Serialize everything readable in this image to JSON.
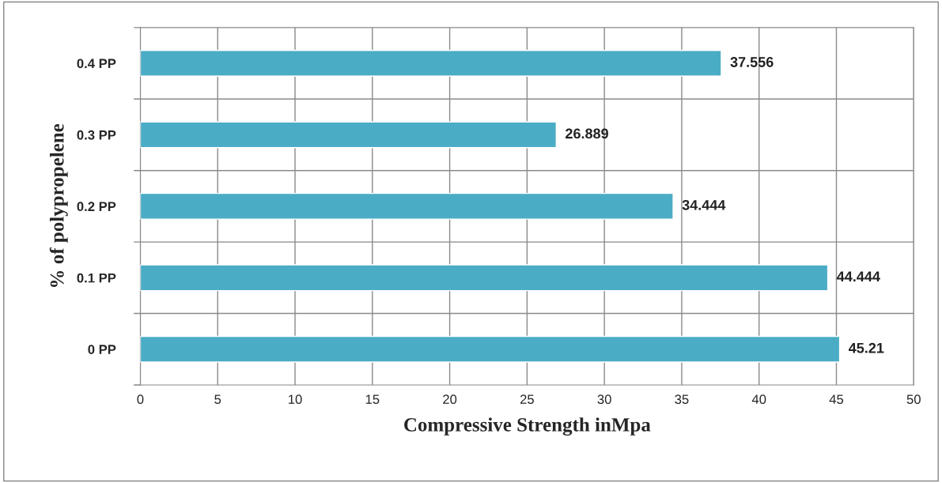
{
  "chart_data": {
    "type": "bar",
    "orientation": "horizontal",
    "xlabel": "Compressive Strength inMpa",
    "ylabel": "% of polypropelene",
    "categories": [
      "0.4 PP",
      "0.3 PP",
      "0.2 PP",
      "0.1 PP",
      "0 PP"
    ],
    "values": [
      37.556,
      26.889,
      34.444,
      44.444,
      45.21
    ],
    "color": "#4bacc6",
    "xlim": [
      0,
      50
    ],
    "xticks": [
      0,
      5,
      10,
      15,
      20,
      25,
      30,
      35,
      40,
      45,
      50
    ],
    "grid": true,
    "data_labels": true,
    "legend": false
  }
}
